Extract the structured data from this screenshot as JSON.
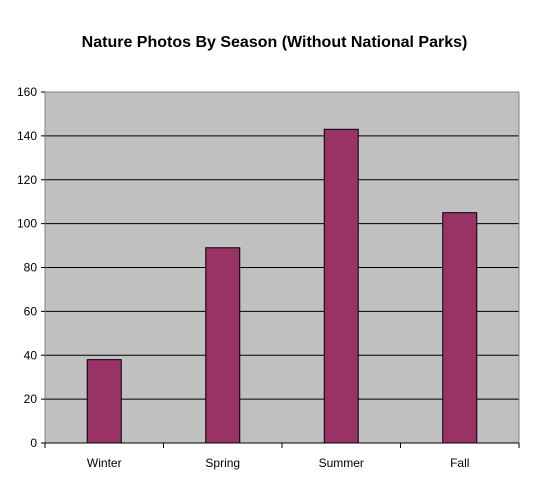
{
  "chart_data": {
    "type": "bar",
    "title": "Nature Photos By Season (Without National Parks)",
    "categories": [
      "Winter",
      "Spring",
      "Summer",
      "Fall"
    ],
    "values": [
      38,
      89,
      143,
      105
    ],
    "ylim": [
      0,
      160
    ],
    "yticks": [
      0,
      20,
      40,
      60,
      80,
      100,
      120,
      140,
      160
    ],
    "xlabel": "",
    "ylabel": "",
    "grid": true,
    "legend": "none",
    "colors": {
      "bar": "#993366",
      "plot_background": "#c0c0c0",
      "gridline": "#000000"
    }
  }
}
